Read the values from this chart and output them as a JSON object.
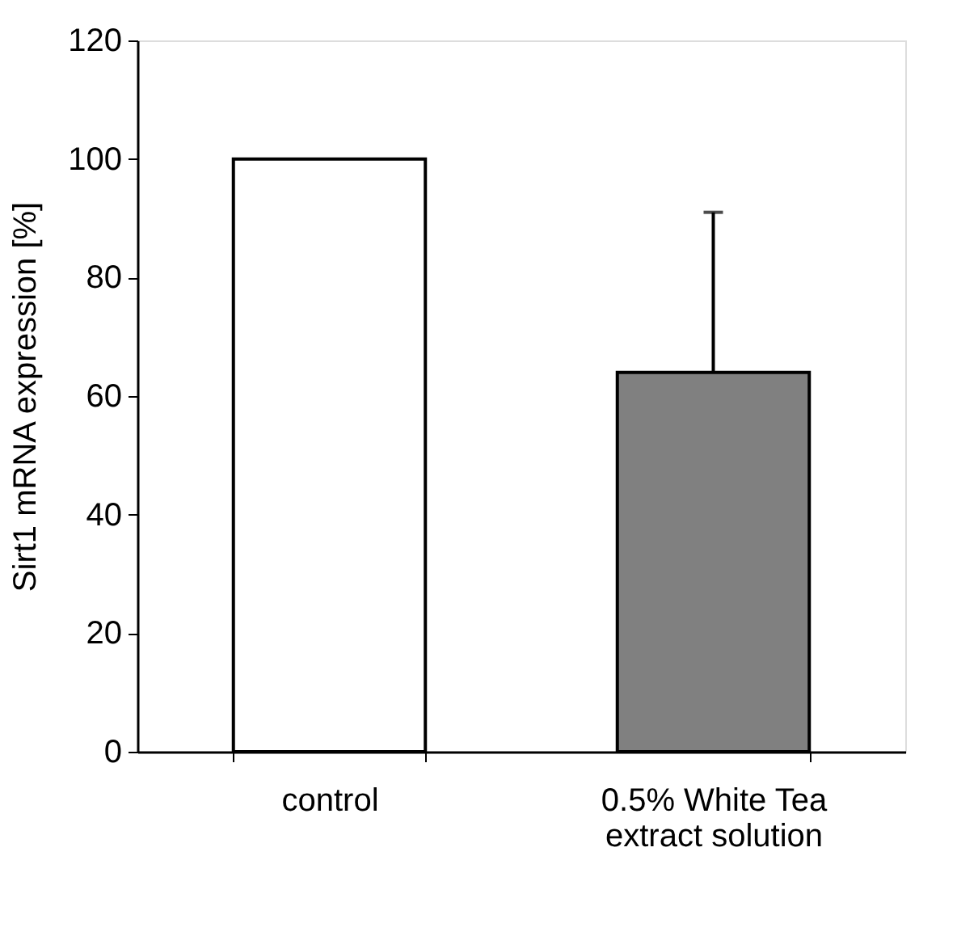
{
  "chart_data": {
    "type": "bar",
    "ylabel": "Sirt1 mRNA expression [%]",
    "categories": [
      "control",
      "0.5% White Tea extract solution"
    ],
    "values": [
      100,
      64
    ],
    "colors": [
      "#ffffff",
      "#808080"
    ],
    "errors": [
      null,
      [
        64,
        91
      ]
    ],
    "ylim": [
      0,
      120
    ],
    "yticks": [
      0,
      20,
      40,
      60,
      80,
      100,
      120
    ],
    "grid": false
  }
}
